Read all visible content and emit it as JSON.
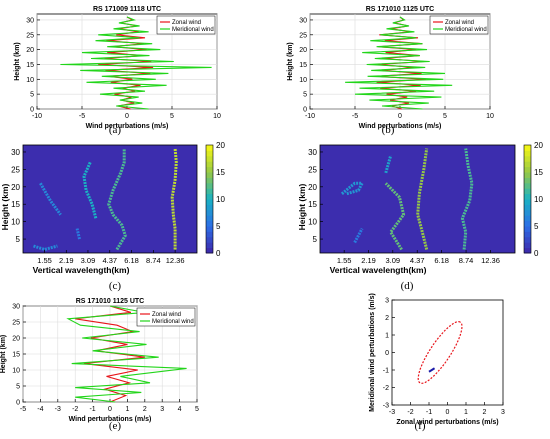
{
  "captions": [
    "(a)",
    "(b)",
    "(c)",
    "(d)",
    "(e)",
    "(f)"
  ],
  "chart_data": [
    {
      "panel": "a",
      "type": "line",
      "title": "RS 171009 1118 UTC",
      "xlabel": "Wind perturbations (m/s)",
      "ylabel": "Height (km)",
      "xlim": [
        -10,
        10
      ],
      "ylim": [
        0,
        32
      ],
      "xticks": [
        -10,
        -5,
        0,
        5,
        10
      ],
      "yticks": [
        0,
        5,
        10,
        15,
        20,
        25,
        30
      ],
      "legend": "top-right",
      "series": [
        {
          "name": "Zonal wind",
          "color": "#e8141a",
          "y": [
            0,
            1,
            2,
            3,
            4,
            5,
            6,
            7,
            8,
            9,
            10,
            11,
            12,
            13,
            14,
            15,
            16,
            17,
            18,
            19,
            20,
            21,
            22,
            23,
            24,
            25,
            26,
            27,
            28,
            29,
            30,
            31
          ],
          "x": [
            0.4,
            -1.0,
            0.8,
            -0.6,
            0.5,
            -1.4,
            0.9,
            -0.5,
            1.5,
            -1.8,
            0.6,
            -2.0,
            2.6,
            -2.4,
            2.9,
            -3.2,
            2.7,
            -2.5,
            1.8,
            -2.2,
            2.2,
            -1.6,
            1.9,
            -2.3,
            2.0,
            -1.2,
            1.3,
            -0.9,
            1.1,
            -0.7,
            0.6,
            0.0
          ]
        },
        {
          "name": "Meridional wind",
          "color": "#22d51a",
          "y": [
            0,
            1,
            2,
            3,
            4,
            5,
            6,
            7,
            8,
            9,
            10,
            11,
            12,
            13,
            14,
            15,
            16,
            17,
            18,
            19,
            20,
            21,
            22,
            23,
            24,
            25,
            26,
            27,
            28,
            29,
            30,
            31
          ],
          "x": [
            2.4,
            -1.2,
            1.7,
            -0.8,
            1.3,
            -3.0,
            2.0,
            -1.5,
            4.4,
            -4.5,
            3.2,
            -2.8,
            4.6,
            -5.2,
            9.4,
            -7.4,
            5.2,
            -4.0,
            2.5,
            -5.0,
            3.7,
            -2.2,
            2.8,
            -3.5,
            1.4,
            -3.2,
            2.4,
            -1.5,
            1.4,
            -0.9,
            0.8,
            0.0
          ]
        }
      ]
    },
    {
      "panel": "b",
      "type": "line",
      "title": "RS 171010 1125 UTC",
      "xlabel": "Wind perturbations (m/s)",
      "ylabel": "Height (km)",
      "xlim": [
        -10,
        10
      ],
      "ylim": [
        0,
        32
      ],
      "xticks": [
        -10,
        -5,
        0,
        5,
        10
      ],
      "yticks": [
        0,
        5,
        10,
        15,
        20,
        25,
        30
      ],
      "legend": "top-right",
      "series": [
        {
          "name": "Zonal wind",
          "color": "#e8141a",
          "y": [
            0,
            1,
            2,
            3,
            4,
            5,
            6,
            7,
            8,
            9,
            10,
            11,
            12,
            13,
            14,
            15,
            16,
            17,
            18,
            19,
            20,
            21,
            22,
            23,
            24,
            25,
            26,
            27,
            28,
            29,
            30,
            31
          ],
          "x": [
            0.2,
            -0.9,
            1.0,
            -1.1,
            0.8,
            -1.5,
            1.8,
            -2.2,
            2.3,
            -2.6,
            2.9,
            -2.5,
            2.4,
            -2.0,
            1.6,
            -2.5,
            2.7,
            -1.9,
            2.2,
            -1.6,
            1.8,
            -2.4,
            2.5,
            -1.7,
            2.0,
            -2.3,
            1.2,
            -1.0,
            0.9,
            -0.6,
            0.4,
            0.0
          ]
        },
        {
          "name": "Meridional wind",
          "color": "#22d51a",
          "y": [
            0,
            1,
            2,
            3,
            4,
            5,
            6,
            7,
            8,
            9,
            10,
            11,
            12,
            13,
            14,
            15,
            16,
            17,
            18,
            19,
            20,
            21,
            22,
            23,
            24,
            25,
            26,
            27,
            28,
            29,
            30,
            31
          ],
          "x": [
            2.5,
            -2.0,
            3.2,
            -3.4,
            4.6,
            -5.0,
            3.8,
            -4.5,
            5.8,
            -6.1,
            4.8,
            -3.6,
            5.0,
            -3.2,
            2.8,
            -3.7,
            3.3,
            -2.8,
            2.2,
            -4.2,
            3.0,
            -2.6,
            2.5,
            -3.3,
            1.8,
            -2.2,
            1.6,
            -1.5,
            1.0,
            -0.8,
            0.5,
            0.0
          ]
        }
      ]
    },
    {
      "panel": "c",
      "type": "heatmap",
      "xlabel": "Vertical wavelength(km)",
      "ylabel": "Height (km)",
      "xticks": [
        "1.55",
        "2.19",
        "3.09",
        "4.37",
        "6.18",
        "8.74",
        "12.36"
      ],
      "xlim": [
        1.1,
        17.5
      ],
      "x_scale": "log",
      "ylim": [
        1,
        32
      ],
      "yticks": [
        5,
        10,
        15,
        20,
        25,
        30
      ],
      "colorbar_ticks": [
        0,
        5,
        10,
        15,
        20
      ],
      "clim": [
        0,
        20
      ],
      "ridges": [
        {
          "wl": [
            12.36,
            12.36,
            12.0,
            11.8,
            12.36,
            12.6,
            12.36
          ],
          "h": [
            2,
            8,
            12,
            17,
            22,
            27,
            31
          ],
          "v": 17
        },
        {
          "wl": [
            4.9,
            5.6,
            5.3,
            4.6,
            4.3,
            4.6,
            5.2,
            5.5,
            5.5
          ],
          "h": [
            2,
            6,
            9,
            12,
            15,
            19,
            24,
            27,
            31
          ],
          "v": 12
        },
        {
          "wl": [
            3.5,
            3.3,
            3.0,
            2.9,
            3.2
          ],
          "h": [
            11,
            15,
            19,
            23,
            27
          ],
          "v": 10
        },
        {
          "wl": [
            1.45,
            1.7,
            2.0
          ],
          "h": [
            21,
            16,
            12
          ],
          "v": 7
        },
        {
          "wl": [
            1.3,
            1.55,
            1.9
          ],
          "h": [
            3,
            2,
            3
          ],
          "v": 7
        },
        {
          "wl": [
            2.7,
            2.6
          ],
          "h": [
            5,
            8
          ],
          "v": 6
        }
      ]
    },
    {
      "panel": "d",
      "type": "heatmap",
      "xlabel": "Vertical wavelength(km)",
      "ylabel": "Height (km)",
      "xticks": [
        "1.55",
        "2.19",
        "3.09",
        "4.37",
        "6.18",
        "8.74",
        "12.36"
      ],
      "xlim": [
        1.1,
        17.5
      ],
      "x_scale": "log",
      "ylim": [
        1,
        32
      ],
      "yticks": [
        5,
        10,
        15,
        20,
        25,
        30
      ],
      "colorbar_ticks": [
        0,
        5,
        10,
        15,
        20
      ],
      "clim": [
        0,
        20
      ],
      "ridges": [
        {
          "wl": [
            8.5,
            8.7,
            8.3,
            9.2,
            9.5,
            9.0,
            8.7
          ],
          "h": [
            2,
            7,
            11,
            16,
            21,
            26,
            31
          ],
          "v": 12
        },
        {
          "wl": [
            5.0,
            4.7,
            4.4,
            4.5,
            4.8,
            5.0
          ],
          "h": [
            2,
            7,
            12,
            18,
            25,
            31
          ],
          "v": 15
        },
        {
          "wl": [
            3.5,
            3.0,
            3.6,
            3.4,
            2.8
          ],
          "h": [
            2,
            7,
            12,
            17,
            21
          ],
          "v": 13
        },
        {
          "wl": [
            2.8,
            3.0
          ],
          "h": [
            24,
            29
          ],
          "v": 9
        },
        {
          "wl": [
            1.5,
            1.8,
            2.0,
            1.9,
            1.6
          ],
          "h": [
            18,
            21,
            21,
            19,
            18
          ],
          "v": 8
        },
        {
          "wl": [
            1.8,
            2.0
          ],
          "h": [
            4,
            8
          ],
          "v": 6
        }
      ]
    },
    {
      "panel": "e",
      "type": "line",
      "title": "RS 171010 1125 UTC",
      "xlabel": "Wind perturbations (m/s)",
      "ylabel": "Height (km)",
      "xlim": [
        -5,
        5
      ],
      "ylim": [
        0,
        30
      ],
      "xticks": [
        -5,
        -4,
        -3,
        -2,
        -1,
        0,
        1,
        2,
        3,
        4,
        5
      ],
      "yticks": [
        0,
        5,
        10,
        15,
        20,
        25,
        30
      ],
      "legend": "top-right",
      "series": [
        {
          "name": "Zonal wind",
          "color": "#e8141a",
          "y": [
            0,
            2,
            4,
            6,
            8,
            10,
            12,
            14,
            16,
            18,
            20,
            22,
            24,
            26,
            28,
            30
          ],
          "x": [
            0.0,
            0.9,
            -0.3,
            1.1,
            -0.2,
            1.6,
            -1.5,
            2.0,
            -0.8,
            1.0,
            -1.1,
            1.3,
            0.4,
            -2.0,
            1.2,
            0.0
          ]
        },
        {
          "name": "Meridional wind",
          "color": "#22d51a",
          "y": [
            0,
            1.5,
            3,
            4.5,
            6,
            8,
            10.5,
            12,
            14,
            16,
            18,
            20,
            22,
            24,
            26,
            28,
            30
          ],
          "x": [
            0.3,
            -2.0,
            1.8,
            -2.0,
            2.3,
            0.6,
            4.4,
            -2.2,
            2.8,
            -1.0,
            2.1,
            -1.6,
            1.7,
            -1.7,
            -2.4,
            2.0,
            0.0
          ]
        }
      ]
    },
    {
      "panel": "f",
      "type": "line",
      "xlabel": "Zonal wind perturbations (m/s)",
      "ylabel": "Meridional wind perturbations (m/s)",
      "xlim": [
        -3,
        3
      ],
      "ylim": [
        -3,
        3
      ],
      "xticks": [
        -3,
        -2,
        -1,
        0,
        1,
        2,
        3
      ],
      "yticks": [
        -3,
        -2,
        -1,
        0,
        1,
        2,
        3
      ],
      "hodograph": {
        "center": [
          -0.4,
          0.0
        ],
        "semi_major": 2.05,
        "semi_minor": 0.55,
        "tilt_deg": 58,
        "color": "#e8141a",
        "marker_color": "#1b1ba8"
      }
    }
  ]
}
